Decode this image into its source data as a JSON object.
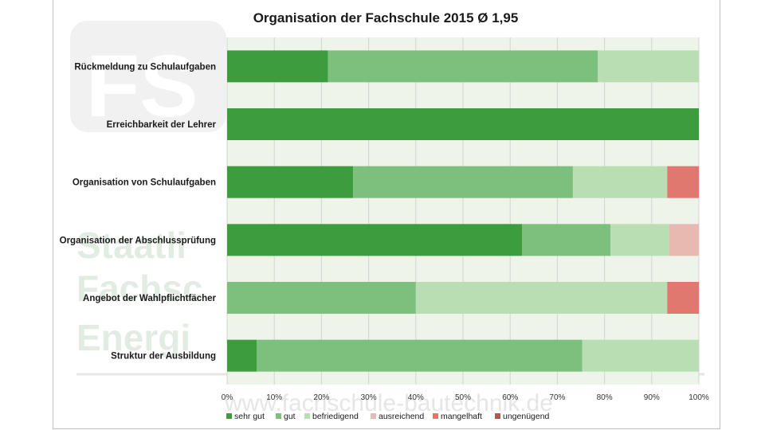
{
  "watermark": {
    "logo_letters": "FS",
    "lines": [
      "Staatli",
      "Fachsc",
      "Energi"
    ],
    "url": "www.fachschule-bautechnik.de"
  },
  "colors": {
    "sehr_gut": "#3d9c3d",
    "gut": "#7dbf7d",
    "befriedigend": "#b9deb4",
    "ausreichend": "#e8b9b0",
    "mangelhaft": "#e07870",
    "ungenuegend": "#c0504d",
    "band": "#eef4ea",
    "grid": "#cfd8cf"
  },
  "chart_data": {
    "type": "bar",
    "orientation": "horizontal",
    "stacked": "percent",
    "title": "Organisation der Fachschule 2015 Ø 1,95",
    "categories": [
      "Rückmeldung zu Schulaufgaben",
      "Erreichbarkeit der Lehrer",
      "Organisation von Schulaufgaben",
      "Organisation der Abschlussprüfung",
      "Angebot der Wahlpflichtfächer",
      "Struktur der Ausbildung"
    ],
    "series": [
      {
        "name": "sehr gut",
        "color": "#3d9c3d",
        "values": [
          21.4,
          100,
          26.7,
          62.5,
          0,
          6.25
        ]
      },
      {
        "name": "gut",
        "color": "#7dbf7d",
        "values": [
          57.2,
          0,
          46.6,
          18.75,
          40,
          69
        ]
      },
      {
        "name": "befriedigend",
        "color": "#b9deb4",
        "values": [
          21.4,
          0,
          20,
          12.5,
          53.3,
          24.75
        ]
      },
      {
        "name": "ausreichend",
        "color": "#e8b9b0",
        "values": [
          0,
          0,
          0,
          6.25,
          0,
          0
        ]
      },
      {
        "name": "mangelhaft",
        "color": "#e07870",
        "values": [
          0,
          0,
          6.7,
          0,
          6.7,
          0
        ]
      },
      {
        "name": "ungenügend",
        "color": "#c0504d",
        "values": [
          0,
          0,
          0,
          0,
          0,
          0
        ]
      }
    ],
    "x_ticks": [
      "0%",
      "10%",
      "20%",
      "30%",
      "40%",
      "50%",
      "60%",
      "70%",
      "80%",
      "90%",
      "100%"
    ],
    "xlim": [
      0,
      100
    ],
    "grid": true,
    "legend_position": "bottom"
  }
}
